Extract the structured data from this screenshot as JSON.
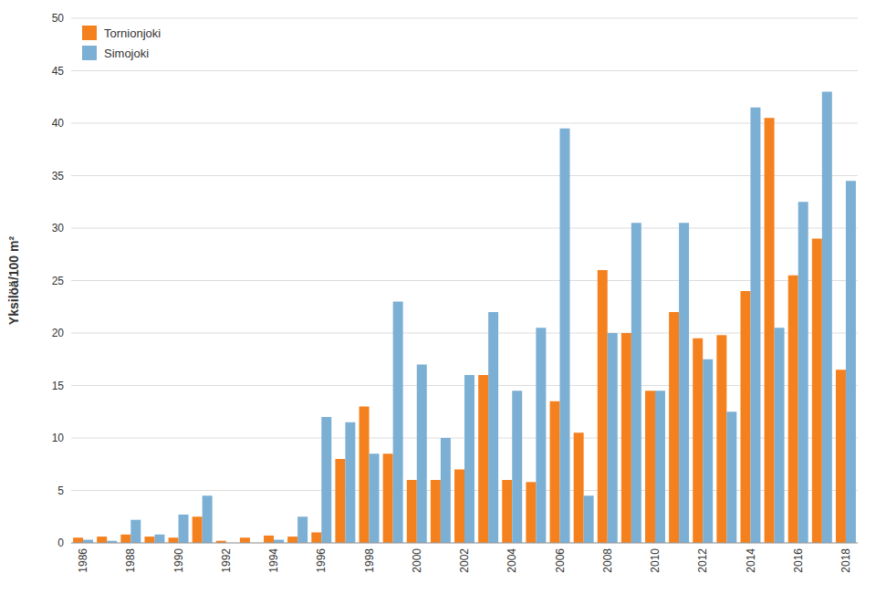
{
  "chart_data": {
    "type": "bar",
    "categories": [
      "1986",
      null,
      "1988",
      null,
      "1990",
      null,
      "1992",
      null,
      "1994",
      null,
      "1996",
      null,
      "1998",
      null,
      "2000",
      null,
      "2002",
      null,
      "2004",
      null,
      "2006",
      null,
      "2008",
      null,
      "2010",
      null,
      "2012",
      null,
      "2014",
      null,
      "2016",
      null,
      "2018"
    ],
    "series": [
      {
        "name": "Tornionjoki",
        "color": "#F4801E",
        "values": [
          0.5,
          0.6,
          0.8,
          0.6,
          0.5,
          2.5,
          0.2,
          0.5,
          0.7,
          0.6,
          1.0,
          8.0,
          13.0,
          8.5,
          6.0,
          6.0,
          7.0,
          16.0,
          6.0,
          5.8,
          13.5,
          10.5,
          26.0,
          20.0,
          14.5,
          22.0,
          19.5,
          19.8,
          24.0,
          40.5,
          25.5,
          29.0,
          16.5
        ]
      },
      {
        "name": "Simojoki",
        "color": "#7BAFD4",
        "values": [
          0.3,
          0.2,
          2.2,
          0.8,
          2.7,
          4.5,
          0.0,
          0.0,
          0.3,
          2.5,
          12.0,
          11.5,
          8.5,
          23.0,
          17.0,
          10.0,
          16.0,
          22.0,
          14.5,
          20.5,
          39.5,
          4.5,
          20.0,
          30.5,
          14.5,
          30.5,
          17.5,
          12.5,
          41.5,
          20.5,
          32.5,
          43.0,
          34.5
        ]
      }
    ],
    "ylabel": "Yksilöä/100 m²",
    "ylim": [
      0,
      50
    ],
    "yticks": [
      0,
      5,
      10,
      15,
      20,
      25,
      30,
      35,
      40,
      45,
      50
    ],
    "grid": true,
    "legend": "upper left"
  }
}
